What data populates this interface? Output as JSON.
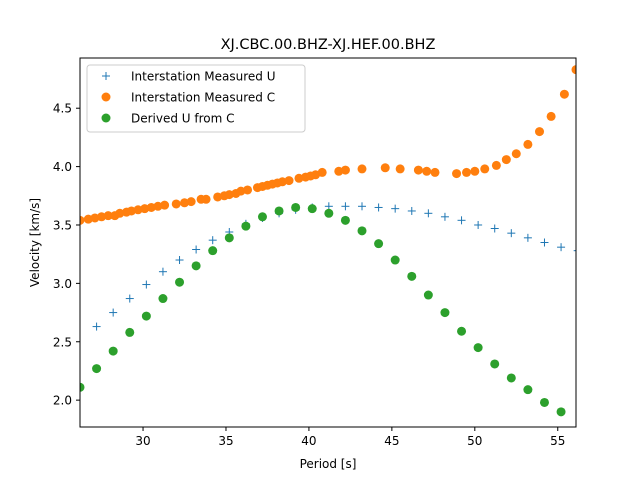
{
  "chart_data": {
    "type": "scatter",
    "title": "XJ.CBC.00.BHZ-XJ.HEF.00.BHZ",
    "xlabel": "Period [s]",
    "ylabel": "Velocity [km/s]",
    "xlim": [
      26.2,
      56.1
    ],
    "ylim": [
      1.77,
      4.93
    ],
    "xticks": [
      30,
      35,
      40,
      45,
      50,
      55
    ],
    "xtick_labels": [
      "30",
      "35",
      "40",
      "45",
      "50",
      "55"
    ],
    "yticks": [
      2.0,
      2.5,
      3.0,
      3.5,
      4.0,
      4.5
    ],
    "ytick_labels": [
      "2.0",
      "2.5",
      "3.0",
      "3.5",
      "4.0",
      "4.5"
    ],
    "grid": false,
    "legend_position": "top-left",
    "series": [
      {
        "name": "Interstation Measured U",
        "marker": "plus",
        "color": "#1f77b4",
        "x": [
          27.2,
          28.2,
          29.2,
          30.2,
          31.2,
          32.2,
          33.2,
          34.2,
          35.2,
          36.2,
          37.2,
          38.2,
          39.2,
          40.2,
          41.2,
          42.2,
          43.2,
          44.2,
          45.2,
          46.2,
          47.2,
          48.2,
          49.2,
          50.2,
          51.2,
          52.2,
          53.2,
          54.2,
          55.2,
          56.2
        ],
        "y": [
          2.63,
          2.75,
          2.87,
          2.99,
          3.1,
          3.2,
          3.29,
          3.37,
          3.44,
          3.51,
          3.56,
          3.6,
          3.63,
          3.65,
          3.66,
          3.66,
          3.66,
          3.65,
          3.64,
          3.62,
          3.6,
          3.57,
          3.54,
          3.5,
          3.47,
          3.43,
          3.39,
          3.35,
          3.31,
          3.28
        ]
      },
      {
        "name": "Interstation Measured C",
        "marker": "circle",
        "color": "#ff7f0e",
        "x": [
          26.2,
          26.7,
          27.1,
          27.5,
          27.9,
          28.3,
          28.6,
          29.0,
          29.3,
          29.7,
          30.1,
          30.5,
          30.9,
          31.3,
          32.0,
          32.5,
          32.9,
          33.5,
          33.8,
          34.5,
          34.9,
          35.2,
          35.6,
          35.9,
          36.3,
          36.9,
          37.2,
          37.5,
          37.8,
          38.1,
          38.4,
          38.8,
          39.4,
          39.8,
          40.1,
          40.4,
          40.8,
          41.8,
          42.2,
          43.2,
          44.6,
          45.5,
          46.6,
          47.1,
          47.6,
          48.9,
          49.5,
          50.0,
          50.6,
          51.3,
          51.9,
          52.5,
          53.2,
          53.9,
          54.6,
          55.4,
          56.1
        ],
        "y": [
          3.54,
          3.55,
          3.56,
          3.57,
          3.58,
          3.58,
          3.6,
          3.61,
          3.62,
          3.63,
          3.64,
          3.65,
          3.66,
          3.67,
          3.68,
          3.69,
          3.7,
          3.72,
          3.72,
          3.74,
          3.75,
          3.76,
          3.77,
          3.79,
          3.8,
          3.82,
          3.83,
          3.84,
          3.85,
          3.86,
          3.87,
          3.88,
          3.9,
          3.91,
          3.92,
          3.93,
          3.95,
          3.96,
          3.97,
          3.98,
          3.99,
          3.98,
          3.97,
          3.96,
          3.95,
          3.94,
          3.95,
          3.96,
          3.98,
          4.01,
          4.06,
          4.11,
          4.19,
          4.3,
          4.43,
          4.62,
          4.83
        ]
      },
      {
        "name": "Derived U from C",
        "marker": "circle",
        "color": "#2ca02c",
        "x": [
          26.2,
          27.2,
          28.2,
          29.2,
          30.2,
          31.2,
          32.2,
          33.2,
          34.2,
          35.2,
          36.2,
          37.2,
          38.2,
          39.2,
          40.2,
          41.2,
          42.2,
          43.2,
          44.2,
          45.2,
          46.2,
          47.2,
          48.2,
          49.2,
          50.2,
          51.2,
          52.2,
          53.2,
          54.2,
          55.2
        ],
        "y": [
          2.11,
          2.27,
          2.42,
          2.58,
          2.72,
          2.87,
          3.01,
          3.15,
          3.28,
          3.39,
          3.49,
          3.57,
          3.62,
          3.65,
          3.64,
          3.6,
          3.54,
          3.45,
          3.34,
          3.2,
          3.06,
          2.9,
          2.75,
          2.59,
          2.45,
          2.31,
          2.19,
          2.09,
          1.98,
          1.9
        ]
      }
    ]
  }
}
